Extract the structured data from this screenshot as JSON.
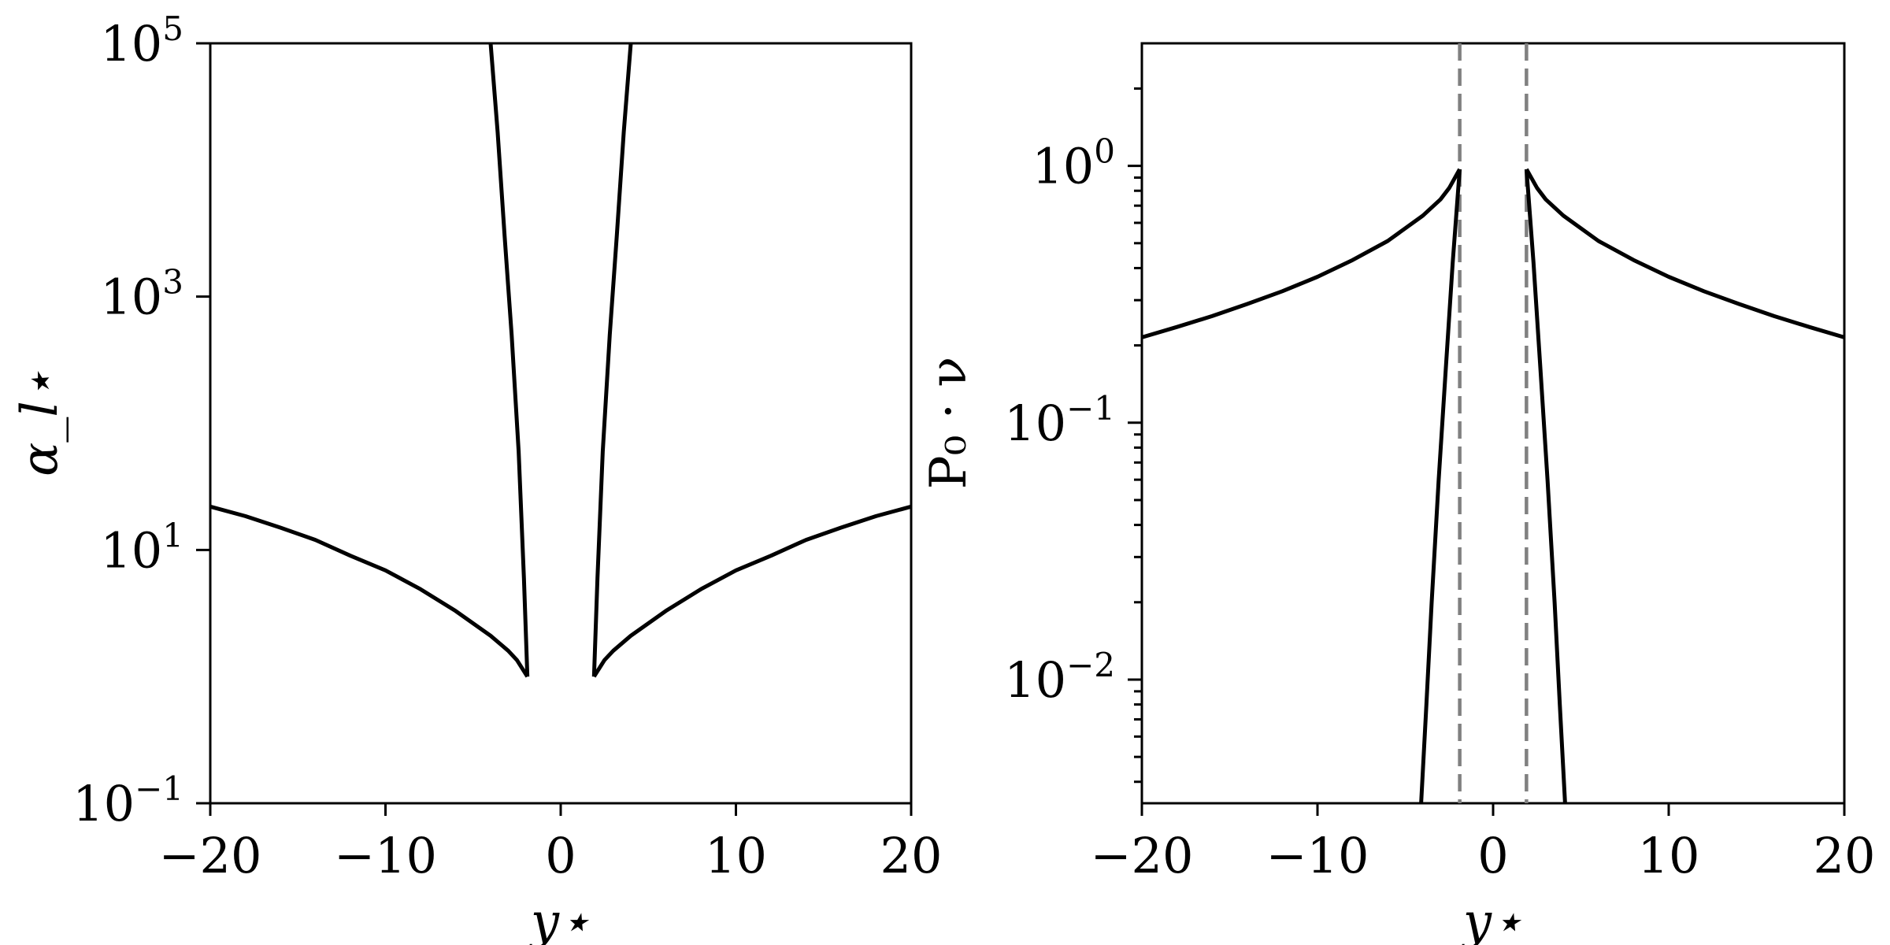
{
  "chart_data": [
    {
      "type": "line",
      "panel": "left",
      "xlabel": "y⋆",
      "ylabel": "α_l⋆",
      "xlim": [
        -20,
        20
      ],
      "ylim": [
        0.1,
        100000
      ],
      "yscale": "log",
      "grid": false,
      "xticks": [
        {
          "value": -20,
          "label": "−20"
        },
        {
          "value": -10,
          "label": "−10"
        },
        {
          "value": 0,
          "label": "0"
        },
        {
          "value": 10,
          "label": "10"
        },
        {
          "value": 20,
          "label": "20"
        }
      ],
      "yticks": [
        {
          "value": 0.1,
          "base": "10",
          "exp": "−1"
        },
        {
          "value": 10,
          "base": "10",
          "exp": "1"
        },
        {
          "value": 1000,
          "base": "10",
          "exp": "3"
        },
        {
          "value": 100000,
          "base": "10",
          "exp": "5"
        }
      ],
      "series": [
        {
          "values": [
            [
              -20,
              22
            ],
            [
              -18,
              18.5
            ],
            [
              -16,
              15
            ],
            [
              -14,
              12
            ],
            [
              -12,
              9
            ],
            [
              -10,
              6.9
            ],
            [
              -8,
              4.9
            ],
            [
              -6,
              3.3
            ],
            [
              -4,
              2.1
            ],
            [
              -3,
              1.6
            ],
            [
              -2.5,
              1.35
            ],
            [
              -1.9,
              1.0
            ]
          ]
        },
        {
          "values": [
            [
              1.9,
              1.0
            ],
            [
              2.5,
              1.35
            ],
            [
              3,
              1.6
            ],
            [
              4,
              2.1
            ],
            [
              6,
              3.3
            ],
            [
              8,
              4.9
            ],
            [
              10,
              6.9
            ],
            [
              12,
              9
            ],
            [
              14,
              12
            ],
            [
              16,
              15
            ],
            [
              18,
              18.5
            ],
            [
              20,
              22
            ]
          ]
        },
        {
          "values": [
            [
              -4.0,
              100000
            ],
            [
              -3.6,
              20000
            ],
            [
              -3.2,
              3000
            ],
            [
              -2.8,
              500
            ],
            [
              -2.4,
              60
            ],
            [
              -2.1,
              6
            ],
            [
              -1.9,
              1.0
            ]
          ]
        },
        {
          "values": [
            [
              1.9,
              1.0
            ],
            [
              2.1,
              6
            ],
            [
              2.4,
              60
            ],
            [
              2.8,
              500
            ],
            [
              3.2,
              3000
            ],
            [
              3.6,
              20000
            ],
            [
              4.0,
              100000
            ]
          ]
        }
      ]
    },
    {
      "type": "line",
      "panel": "right",
      "xlabel": "y⋆",
      "ylabel": "P₀ · ν",
      "xlim": [
        -20,
        20
      ],
      "ylim": [
        0.0033,
        3
      ],
      "yscale": "log",
      "grid": false,
      "xticks": [
        {
          "value": -20,
          "label": "−20"
        },
        {
          "value": -10,
          "label": "−10"
        },
        {
          "value": 0,
          "label": "0"
        },
        {
          "value": 10,
          "label": "10"
        },
        {
          "value": 20,
          "label": "20"
        }
      ],
      "yticks": [
        {
          "value": 0.01,
          "base": "10",
          "exp": "−2"
        },
        {
          "value": 0.1,
          "base": "10",
          "exp": "−1"
        },
        {
          "value": 1,
          "base": "10",
          "exp": "0"
        }
      ],
      "vlines": [
        -1.9,
        1.9
      ],
      "series": [
        {
          "values": [
            [
              -20,
              0.215
            ],
            [
              -18,
              0.236
            ],
            [
              -16,
              0.26
            ],
            [
              -14,
              0.29
            ],
            [
              -12,
              0.325
            ],
            [
              -10,
              0.37
            ],
            [
              -8,
              0.43
            ],
            [
              -6,
              0.51
            ],
            [
              -4,
              0.64
            ],
            [
              -3,
              0.74
            ],
            [
              -2.5,
              0.82
            ],
            [
              -1.9,
              0.97
            ]
          ]
        },
        {
          "values": [
            [
              1.9,
              0.97
            ],
            [
              2.5,
              0.82
            ],
            [
              3,
              0.74
            ],
            [
              4,
              0.64
            ],
            [
              6,
              0.51
            ],
            [
              8,
              0.43
            ],
            [
              10,
              0.37
            ],
            [
              12,
              0.325
            ],
            [
              14,
              0.29
            ],
            [
              16,
              0.26
            ],
            [
              18,
              0.236
            ],
            [
              20,
              0.215
            ]
          ]
        },
        {
          "values": [
            [
              -4.1,
              0.0033
            ],
            [
              -3.8,
              0.008
            ],
            [
              -3.5,
              0.02
            ],
            [
              -3.1,
              0.06
            ],
            [
              -2.7,
              0.16
            ],
            [
              -2.3,
              0.42
            ],
            [
              -1.9,
              0.97
            ]
          ]
        },
        {
          "values": [
            [
              1.9,
              0.97
            ],
            [
              2.3,
              0.42
            ],
            [
              2.7,
              0.16
            ],
            [
              3.1,
              0.06
            ],
            [
              3.5,
              0.02
            ],
            [
              3.8,
              0.008
            ],
            [
              4.1,
              0.0033
            ]
          ]
        }
      ]
    }
  ]
}
